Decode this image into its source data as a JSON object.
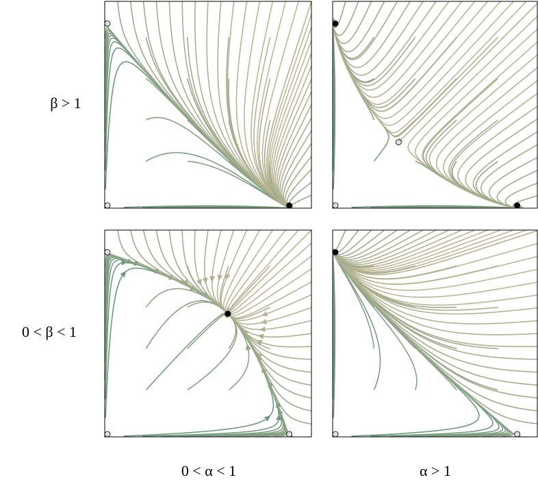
{
  "row_labels": [
    "β > 1",
    "0 < β < 1"
  ],
  "column_labels": [
    "0 < α < 1",
    "α > 1"
  ]
}
